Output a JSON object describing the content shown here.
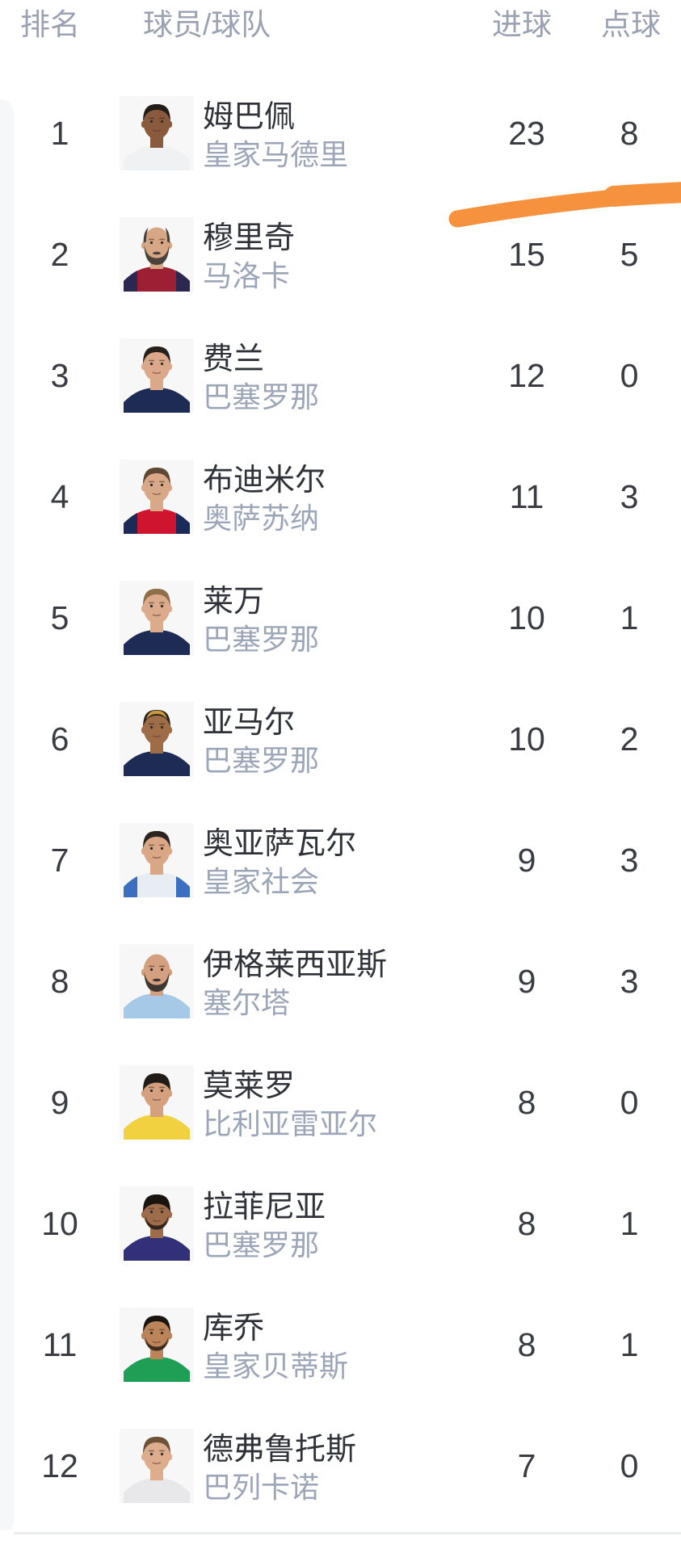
{
  "colors": {
    "accent_marker": "#f6913e",
    "header_text": "#9aa2b3",
    "team_text": "#9ca6b9",
    "dark_text": "#34383e",
    "divider": "#e9ebef",
    "side_card": "#f6f7f9"
  },
  "header": {
    "rank": "排名",
    "player_team": "球员/球队",
    "goals": "进球",
    "penalties": "点球"
  },
  "annotation": {
    "type": "hand-drawn-marker-underline",
    "color": "#f6913e",
    "under_row_rank": "1"
  },
  "table": {
    "rows": [
      {
        "rank": "1",
        "name": "姆巴佩",
        "team": "皇家马德里",
        "goals": "23",
        "penalties": "8",
        "avatar": {
          "skin": "#8a5a3d",
          "hair": "#221d19",
          "shirt": "#f0f1f3"
        }
      },
      {
        "rank": "2",
        "name": "穆里奇",
        "team": "马洛卡",
        "goals": "15",
        "penalties": "5",
        "avatar": {
          "skin": "#d7a685",
          "hair": "#45403b",
          "shirt": "#9c1f33",
          "shirt2": "#2c2750",
          "beard": "#4c423c",
          "bald": true,
          "fullBeard": true
        }
      },
      {
        "rank": "3",
        "name": "费兰",
        "team": "巴塞罗那",
        "goals": "12",
        "penalties": "0",
        "avatar": {
          "skin": "#dba98a",
          "hair": "#27211d",
          "shirt": "#1d2b55"
        }
      },
      {
        "rank": "4",
        "name": "布迪米尔",
        "team": "奥萨苏纳",
        "goals": "11",
        "penalties": "3",
        "avatar": {
          "skin": "#d9a888",
          "hair": "#5f4833",
          "shirt": "#cf1430",
          "shirt2": "#1c2a58"
        }
      },
      {
        "rank": "5",
        "name": "莱万",
        "team": "巴塞罗那",
        "goals": "10",
        "penalties": "1",
        "avatar": {
          "skin": "#dcab8c",
          "hair": "#8f6f49",
          "shirt": "#1d2b55"
        }
      },
      {
        "rank": "6",
        "name": "亚马尔",
        "team": "巴塞罗那",
        "goals": "10",
        "penalties": "2",
        "avatar": {
          "skin": "#9e6c46",
          "hair": "#2b221b",
          "hair2": "#c79a3e",
          "shirt": "#1d2b55"
        }
      },
      {
        "rank": "7",
        "name": "奥亚萨瓦尔",
        "team": "皇家社会",
        "goals": "9",
        "penalties": "3",
        "avatar": {
          "skin": "#d9a686",
          "hair": "#2b2420",
          "shirt": "#e8edf4",
          "shirt2": "#3c6fc0"
        }
      },
      {
        "rank": "8",
        "name": "伊格莱西亚斯",
        "team": "塞尔塔",
        "goals": "9",
        "penalties": "3",
        "avatar": {
          "skin": "#d5a07f",
          "shirt": "#a6c9e8",
          "beard": "#3e3630",
          "bald": true,
          "fullBeard": true
        }
      },
      {
        "rank": "9",
        "name": "莫莱罗",
        "team": "比利亚雷亚尔",
        "goals": "8",
        "penalties": "0",
        "avatar": {
          "skin": "#d4a07e",
          "hair": "#211c18",
          "shirt": "#f2d141",
          "fluffy": true
        }
      },
      {
        "rank": "10",
        "name": "拉菲尼亚",
        "team": "巴塞罗那",
        "goals": "8",
        "penalties": "1",
        "avatar": {
          "skin": "#9e6c4a",
          "hair": "#191410",
          "shirt": "#33307a",
          "beard": "#2a2018",
          "fluffy": true
        }
      },
      {
        "rank": "11",
        "name": "库乔",
        "team": "皇家贝蒂斯",
        "goals": "8",
        "penalties": "1",
        "avatar": {
          "skin": "#bb8459",
          "hair": "#1a1511",
          "shirt": "#1f9e55",
          "beard": "#33261c"
        }
      },
      {
        "rank": "12",
        "name": "德弗鲁托斯",
        "team": "巴列卡诺",
        "goals": "7",
        "penalties": "0",
        "avatar": {
          "skin": "#ddad8e",
          "hair": "#6d5236",
          "shirt": "#e8e8ea"
        }
      }
    ]
  }
}
